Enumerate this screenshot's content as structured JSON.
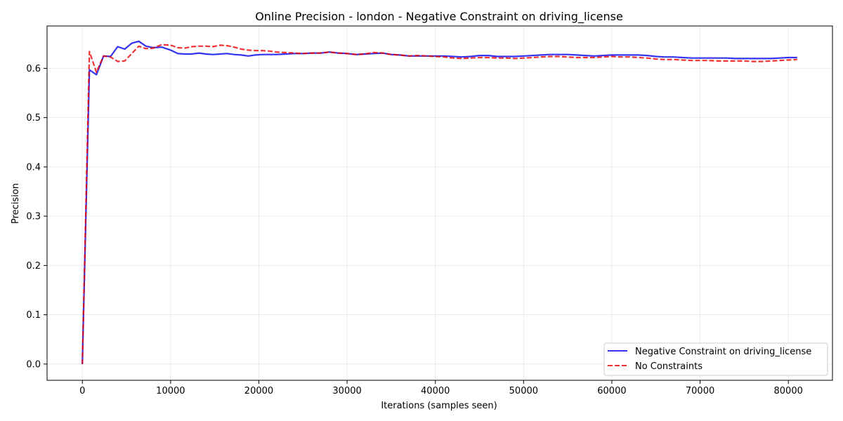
{
  "chart_data": {
    "type": "line",
    "title": "Online Precision - london - Negative Constraint on driving_license",
    "xlabel": "Iterations (samples seen)",
    "ylabel": "Precision",
    "xlim": [
      -4000,
      85000
    ],
    "ylim": [
      -0.033,
      0.686
    ],
    "xticks": [
      0,
      10000,
      20000,
      30000,
      40000,
      50000,
      60000,
      70000,
      80000
    ],
    "xtick_labels": [
      "0",
      "10000",
      "20000",
      "30000",
      "40000",
      "50000",
      "60000",
      "70000",
      "80000"
    ],
    "yticks": [
      0.0,
      0.1,
      0.2,
      0.3,
      0.4,
      0.5,
      0.6
    ],
    "ytick_labels": [
      "0.0",
      "0.1",
      "0.2",
      "0.3",
      "0.4",
      "0.5",
      "0.6"
    ],
    "grid": true,
    "legend_position": "bottom-right",
    "series": [
      {
        "name": "Negative Constraint on driving_license",
        "color": "#0000ee",
        "style": "solid",
        "x": [
          0,
          800,
          1600,
          2400,
          3200,
          4000,
          4800,
          5600,
          6400,
          7200,
          8000,
          9000,
          10000,
          10800,
          11600,
          12400,
          13200,
          14000,
          14800,
          15600,
          16400,
          17200,
          18000,
          18800,
          19600,
          20400,
          21200,
          22000,
          23000,
          24000,
          25000,
          26000,
          27000,
          28000,
          29000,
          30000,
          31000,
          32000,
          33000,
          34000,
          35000,
          36000,
          37000,
          38000,
          39000,
          40000,
          41000,
          42000,
          43000,
          44000,
          45000,
          46000,
          47000,
          48000,
          49000,
          50000,
          51000,
          52000,
          53000,
          54000,
          55000,
          56000,
          57000,
          58000,
          59000,
          60000,
          61000,
          62000,
          63000,
          64000,
          65000,
          66000,
          67000,
          68000,
          69000,
          70000,
          71000,
          72000,
          73000,
          74000,
          75000,
          76000,
          77000,
          78000,
          79000,
          80000,
          81000
        ],
        "y": [
          0.0,
          0.597,
          0.587,
          0.625,
          0.624,
          0.644,
          0.639,
          0.651,
          0.655,
          0.645,
          0.642,
          0.643,
          0.637,
          0.63,
          0.629,
          0.629,
          0.631,
          0.629,
          0.628,
          0.629,
          0.63,
          0.628,
          0.627,
          0.625,
          0.627,
          0.628,
          0.628,
          0.628,
          0.629,
          0.63,
          0.63,
          0.631,
          0.631,
          0.633,
          0.631,
          0.63,
          0.628,
          0.629,
          0.63,
          0.631,
          0.628,
          0.627,
          0.625,
          0.625,
          0.625,
          0.625,
          0.625,
          0.624,
          0.623,
          0.624,
          0.626,
          0.626,
          0.624,
          0.624,
          0.624,
          0.625,
          0.626,
          0.627,
          0.628,
          0.628,
          0.628,
          0.627,
          0.626,
          0.625,
          0.626,
          0.627,
          0.627,
          0.627,
          0.627,
          0.626,
          0.624,
          0.623,
          0.623,
          0.622,
          0.621,
          0.621,
          0.621,
          0.621,
          0.621,
          0.62,
          0.62,
          0.62,
          0.62,
          0.62,
          0.621,
          0.622,
          0.622
        ]
      },
      {
        "name": "No Constraints",
        "color": "#ee0000",
        "style": "dashed",
        "x": [
          0,
          800,
          1600,
          2400,
          3200,
          4000,
          4800,
          5600,
          6400,
          7200,
          8000,
          9000,
          10000,
          10800,
          11600,
          12400,
          13200,
          14000,
          14800,
          15600,
          16400,
          17200,
          18000,
          18800,
          19600,
          20400,
          21200,
          22000,
          23000,
          24000,
          25000,
          26000,
          27000,
          28000,
          29000,
          30000,
          31000,
          32000,
          33000,
          34000,
          35000,
          36000,
          37000,
          38000,
          39000,
          40000,
          41000,
          42000,
          43000,
          44000,
          45000,
          46000,
          47000,
          48000,
          49000,
          50000,
          51000,
          52000,
          53000,
          54000,
          55000,
          56000,
          57000,
          58000,
          59000,
          60000,
          61000,
          62000,
          63000,
          64000,
          65000,
          66000,
          67000,
          68000,
          69000,
          70000,
          71000,
          72000,
          73000,
          74000,
          75000,
          76000,
          77000,
          78000,
          79000,
          80000,
          81000
        ],
        "y": [
          0.0,
          0.634,
          0.592,
          0.625,
          0.623,
          0.614,
          0.615,
          0.63,
          0.645,
          0.64,
          0.641,
          0.648,
          0.647,
          0.642,
          0.641,
          0.644,
          0.645,
          0.645,
          0.644,
          0.647,
          0.646,
          0.643,
          0.639,
          0.637,
          0.636,
          0.636,
          0.635,
          0.633,
          0.632,
          0.631,
          0.63,
          0.631,
          0.631,
          0.633,
          0.631,
          0.63,
          0.628,
          0.629,
          0.632,
          0.631,
          0.628,
          0.627,
          0.625,
          0.626,
          0.625,
          0.624,
          0.623,
          0.621,
          0.62,
          0.621,
          0.622,
          0.622,
          0.621,
          0.621,
          0.62,
          0.621,
          0.622,
          0.623,
          0.624,
          0.624,
          0.623,
          0.622,
          0.622,
          0.622,
          0.623,
          0.624,
          0.623,
          0.623,
          0.622,
          0.621,
          0.619,
          0.618,
          0.618,
          0.617,
          0.616,
          0.616,
          0.616,
          0.615,
          0.615,
          0.615,
          0.615,
          0.614,
          0.614,
          0.615,
          0.616,
          0.617,
          0.618
        ]
      }
    ]
  }
}
